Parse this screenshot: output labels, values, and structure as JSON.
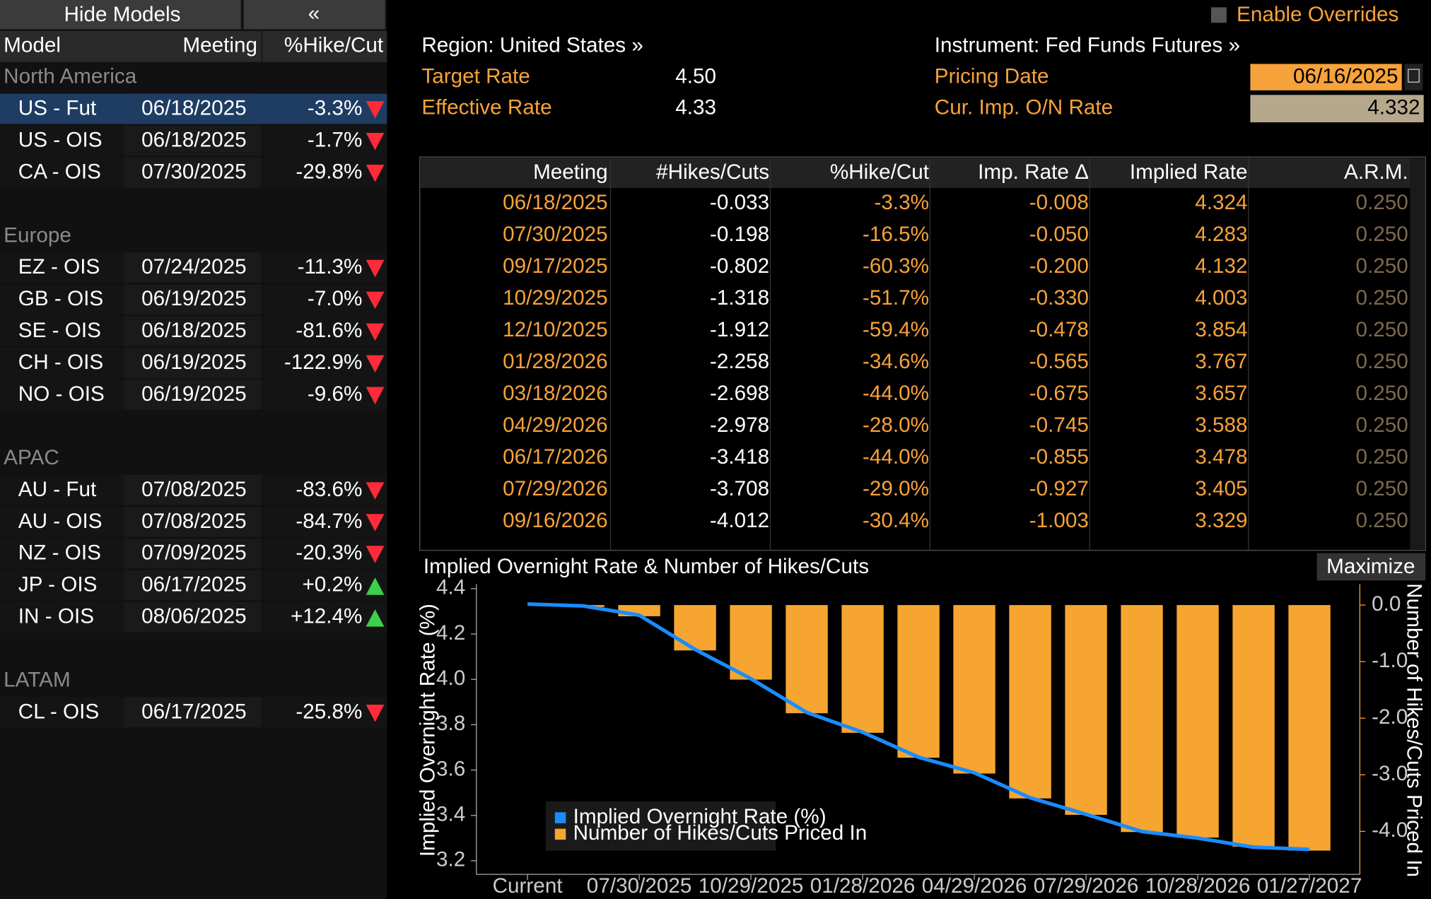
{
  "toolbar": {
    "hide_models": "Hide Models",
    "collapse": "«",
    "enable_overrides": "Enable Overrides"
  },
  "models": {
    "columns": [
      "Model",
      "Meeting",
      "%Hike/Cut"
    ],
    "groups": [
      {
        "name": "North America",
        "rows": [
          [
            "US - Fut",
            "06/18/2025",
            "-3.3%"
          ],
          [
            "US - OIS",
            "06/18/2025",
            "-1.7%"
          ],
          [
            "CA - OIS",
            "07/30/2025",
            "-29.8%"
          ]
        ]
      },
      {
        "name": "Europe",
        "rows": [
          [
            "EZ - OIS",
            "07/24/2025",
            "-11.3%"
          ],
          [
            "GB - OIS",
            "06/19/2025",
            "-7.0%"
          ],
          [
            "SE - OIS",
            "06/18/2025",
            "-81.6%"
          ],
          [
            "CH - OIS",
            "06/19/2025",
            "-122.9%"
          ],
          [
            "NO - OIS",
            "06/19/2025",
            "-9.6%"
          ]
        ]
      },
      {
        "name": "APAC",
        "rows": [
          [
            "AU - Fut",
            "07/08/2025",
            "-83.6%"
          ],
          [
            "AU - OIS",
            "07/08/2025",
            "-84.7%"
          ],
          [
            "NZ - OIS",
            "07/09/2025",
            "-20.3%"
          ],
          [
            "JP - OIS",
            "06/17/2025",
            "+0.2%"
          ],
          [
            "IN - OIS",
            "08/06/2025",
            "+12.4%"
          ]
        ]
      },
      {
        "name": "LATAM",
        "rows": [
          [
            "CL - OIS",
            "06/17/2025",
            "-25.8%"
          ]
        ]
      }
    ]
  },
  "header": {
    "region": "Region: United States »",
    "instrument": "Instrument: Fed Funds Futures »",
    "fields": [
      {
        "label": "Target Rate",
        "value": "4.50"
      },
      {
        "label": "Effective Rate",
        "value": "4.33"
      },
      {
        "label": "Pricing Date",
        "value": "06/16/2025"
      },
      {
        "label": "Cur. Imp. O/N Rate",
        "value": "4.332"
      }
    ]
  },
  "table": {
    "columns": [
      "Meeting",
      "#Hikes/Cuts",
      "%Hike/Cut",
      "Imp. Rate Δ",
      "Implied Rate",
      "A.R.M."
    ],
    "rows": [
      [
        "06/18/2025",
        "-0.033",
        "-3.3%",
        "-0.008",
        "4.324",
        "0.250"
      ],
      [
        "07/30/2025",
        "-0.198",
        "-16.5%",
        "-0.050",
        "4.283",
        "0.250"
      ],
      [
        "09/17/2025",
        "-0.802",
        "-60.3%",
        "-0.200",
        "4.132",
        "0.250"
      ],
      [
        "10/29/2025",
        "-1.318",
        "-51.7%",
        "-0.330",
        "4.003",
        "0.250"
      ],
      [
        "12/10/2025",
        "-1.912",
        "-59.4%",
        "-0.478",
        "3.854",
        "0.250"
      ],
      [
        "01/28/2026",
        "-2.258",
        "-34.6%",
        "-0.565",
        "3.767",
        "0.250"
      ],
      [
        "03/18/2026",
        "-2.698",
        "-44.0%",
        "-0.675",
        "3.657",
        "0.250"
      ],
      [
        "04/29/2026",
        "-2.978",
        "-28.0%",
        "-0.745",
        "3.588",
        "0.250"
      ],
      [
        "06/17/2026",
        "-3.418",
        "-44.0%",
        "-0.855",
        "3.478",
        "0.250"
      ],
      [
        "07/29/2026",
        "-3.708",
        "-29.0%",
        "-0.927",
        "3.405",
        "0.250"
      ],
      [
        "09/16/2026",
        "-4.012",
        "-30.4%",
        "-1.003",
        "3.329",
        "0.250"
      ]
    ]
  },
  "maximize": "Maximize",
  "chart_data": {
    "type": "bar_line",
    "title": "Implied Overnight Rate & Number of Hikes/Cuts",
    "categories": [
      "Current",
      null,
      "07/30/2025",
      null,
      "10/29/2025",
      null,
      "01/28/2026",
      null,
      "04/29/2026",
      null,
      "07/29/2026",
      null,
      "10/28/2026",
      null,
      "01/27/2027"
    ],
    "series": [
      {
        "name": "Implied Overnight Rate (%)",
        "type": "line",
        "color": "#1a8cff",
        "values": [
          4.332,
          4.324,
          4.283,
          4.132,
          4.003,
          3.854,
          3.767,
          3.657,
          3.588,
          3.478,
          3.405,
          3.329,
          3.3,
          3.26,
          3.25
        ]
      },
      {
        "name": "Number of Hikes/Cuts Priced In",
        "type": "bar",
        "axis": "y2",
        "color": "#f6a531",
        "values": [
          null,
          -0.033,
          -0.198,
          -0.802,
          -1.318,
          -1.912,
          -2.258,
          -2.698,
          -2.978,
          -3.418,
          -3.708,
          -4.012,
          -4.11,
          -4.27,
          -4.34
        ]
      }
    ],
    "ylabel": "Implied Overnight Rate (%)",
    "y2label": "Number of Hikes/Cuts Priced In",
    "ylim": [
      3.14,
      4.42
    ],
    "yticks": [
      3.2,
      3.4,
      3.6,
      3.8,
      {
        "value": 4,
        "label": "4.0"
      },
      4.2,
      4.4
    ],
    "y2lim": [
      -4.76,
      0.37
    ],
    "y2ticks": [
      {
        "value": 0,
        "label": "0.0"
      },
      {
        "value": -1,
        "label": "-1.0"
      },
      {
        "value": -2,
        "label": "-2.0"
      },
      {
        "value": -3,
        "label": "-3.0"
      },
      {
        "value": -4,
        "label": "-4.0"
      }
    ],
    "legend": "lower left"
  }
}
